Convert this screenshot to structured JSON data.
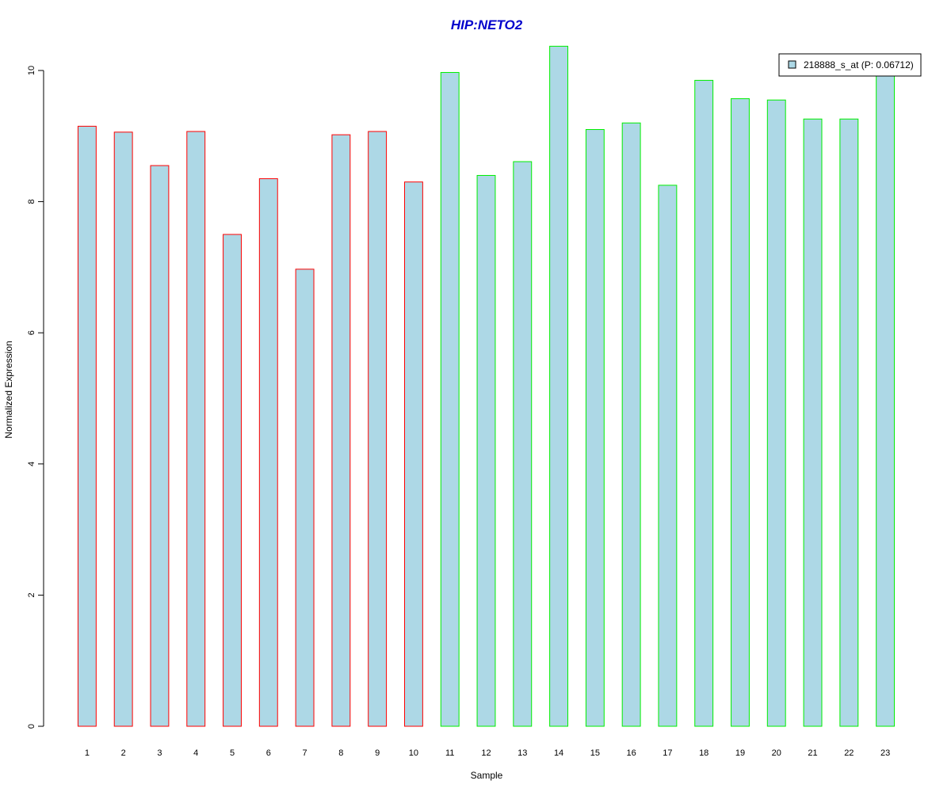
{
  "chart_data": {
    "type": "bar",
    "title": "HIP:NETO2",
    "xlabel": "Sample",
    "ylabel": "Normalized Expression",
    "categories": [
      "1",
      "2",
      "3",
      "4",
      "5",
      "6",
      "7",
      "8",
      "9",
      "10",
      "11",
      "12",
      "13",
      "14",
      "15",
      "16",
      "17",
      "18",
      "19",
      "20",
      "21",
      "22",
      "23"
    ],
    "series": [
      {
        "name": "218888_s_at (P: 0.06712)",
        "values": [
          9.15,
          9.06,
          8.55,
          9.07,
          7.5,
          8.35,
          6.97,
          9.02,
          9.07,
          8.3,
          9.97,
          8.4,
          8.61,
          10.37,
          9.1,
          9.2,
          8.25,
          9.85,
          9.57,
          9.55,
          9.26,
          9.26,
          10.05
        ]
      }
    ],
    "groups": [
      {
        "samples": [
          1,
          2,
          3,
          4,
          5,
          6,
          7,
          8,
          9,
          10
        ],
        "border_color": "#ff0000"
      },
      {
        "samples": [
          11,
          12,
          13,
          14,
          15,
          16,
          17,
          18,
          19,
          20,
          21,
          22,
          23
        ],
        "border_color": "#00ee00"
      }
    ],
    "yticks": [
      0,
      2,
      4,
      6,
      8,
      10
    ],
    "ylim": [
      0,
      10.37
    ],
    "bar_fill": "#add8e6",
    "title_color": "#0000cc",
    "legend_position": "top-right",
    "grid": false
  }
}
